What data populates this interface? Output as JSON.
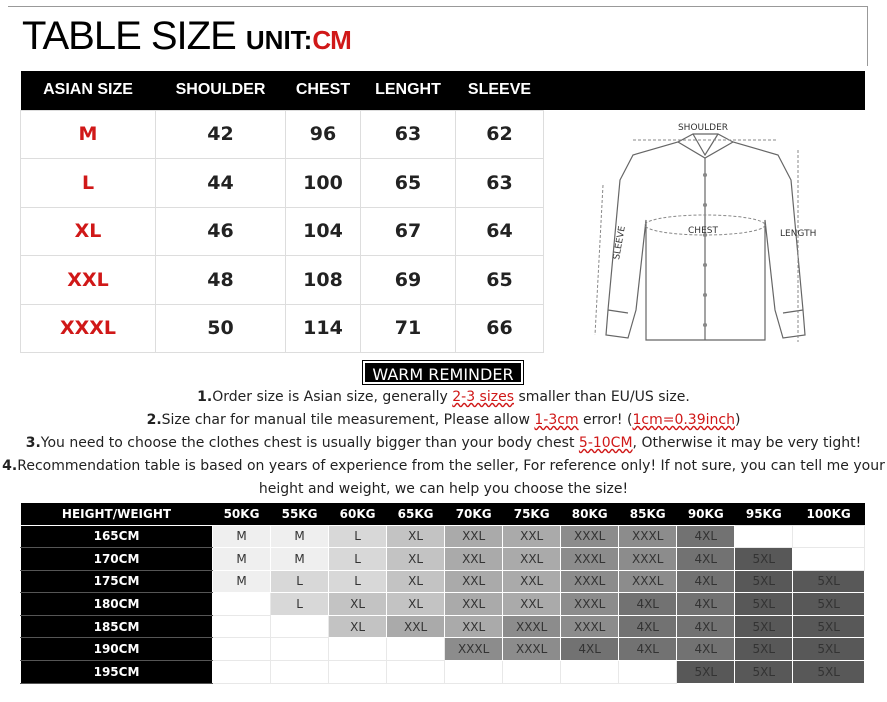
{
  "title": {
    "main": "TABLE SIZE",
    "unit_label": "UNIT:",
    "unit": "CM"
  },
  "size_table": {
    "headers": [
      "ASIAN SIZE",
      "SHOULDER",
      "CHEST",
      "LENGHT",
      "SLEEVE"
    ],
    "rows": [
      [
        "M",
        "42",
        "96",
        "63",
        "62"
      ],
      [
        "L",
        "44",
        "100",
        "65",
        "63"
      ],
      [
        "XL",
        "46",
        "104",
        "67",
        "64"
      ],
      [
        "XXL",
        "48",
        "108",
        "69",
        "65"
      ],
      [
        "XXXL",
        "50",
        "114",
        "71",
        "66"
      ]
    ]
  },
  "diagram": {
    "shoulder": "SHOULDER",
    "chest": "CHEST",
    "length": "LENGTH",
    "sleeve": "SLEEVE"
  },
  "reminder": {
    "title": "WARM REMINDER",
    "lines": [
      [
        {
          "t": "1.",
          "b": true
        },
        {
          "t": "Order size is Asian size, generally "
        },
        {
          "t": "2-3 sizes",
          "r": true
        },
        {
          "t": " smaller than EU/US size."
        }
      ],
      [
        {
          "t": "2.",
          "b": true
        },
        {
          "t": "Size char for manual tile measurement, Please allow "
        },
        {
          "t": "1-3cm",
          "r": true
        },
        {
          "t": " error! ("
        },
        {
          "t": "1cm=0.39inch",
          "r": true
        },
        {
          "t": ")"
        }
      ],
      [
        {
          "t": "3.",
          "b": true
        },
        {
          "t": "You need to choose the clothes chest is usually bigger than your body chest "
        },
        {
          "t": "5-10CM",
          "r": true
        },
        {
          "t": ", Otherwise it may be very tight!"
        }
      ],
      [
        {
          "t": "4.",
          "b": true
        },
        {
          "t": "Recommendation table is based on years of experience from the seller, For reference only! If not sure, you can tell me  your"
        }
      ],
      [
        {
          "t": "height and weight, we can help you choose the size!"
        }
      ]
    ]
  },
  "fit_table": {
    "corner": "HEIGHT/WEIGHT",
    "weights": [
      "50KG",
      "55KG",
      "60KG",
      "65KG",
      "70KG",
      "75KG",
      "80KG",
      "85KG",
      "90KG",
      "95KG",
      "100KG"
    ],
    "rows": [
      {
        "height": "165CM",
        "sizes": [
          "M",
          "M",
          "L",
          "XL",
          "XXL",
          "XXL",
          "XXXL",
          "XXXL",
          "4XL",
          "",
          ""
        ]
      },
      {
        "height": "170CM",
        "sizes": [
          "M",
          "M",
          "L",
          "XL",
          "XXL",
          "XXL",
          "XXXL",
          "XXXL",
          "4XL",
          "5XL",
          ""
        ]
      },
      {
        "height": "175CM",
        "sizes": [
          "M",
          "L",
          "L",
          "XL",
          "XXL",
          "XXL",
          "XXXL",
          "XXXL",
          "4XL",
          "5XL",
          "5XL"
        ]
      },
      {
        "height": "180CM",
        "sizes": [
          "",
          "L",
          "XL",
          "XL",
          "XXL",
          "XXL",
          "XXXL",
          "4XL",
          "4XL",
          "5XL",
          "5XL"
        ]
      },
      {
        "height": "185CM",
        "sizes": [
          "",
          "",
          "XL",
          "XXL",
          "XXL",
          "XXXL",
          "XXXL",
          "4XL",
          "4XL",
          "5XL",
          "5XL"
        ]
      },
      {
        "height": "190CM",
        "sizes": [
          "",
          "",
          "",
          "",
          "XXXL",
          "XXXL",
          "4XL",
          "4XL",
          "4XL",
          "5XL",
          "5XL"
        ]
      },
      {
        "height": "195CM",
        "sizes": [
          "",
          "",
          "",
          "",
          "",
          "",
          "",
          "",
          "5XL",
          "5XL",
          "5XL"
        ]
      }
    ],
    "shades": {
      "M": "#efefef",
      "L": "#d8d8d8",
      "XL": "#c3c3c3",
      "XXL": "#aaaaaa",
      "XXXL": "#8c8c8c",
      "4XL": "#727272",
      "5XL": "#585858"
    }
  },
  "colors": {
    "accent": "#d01818",
    "header": "#000000"
  }
}
